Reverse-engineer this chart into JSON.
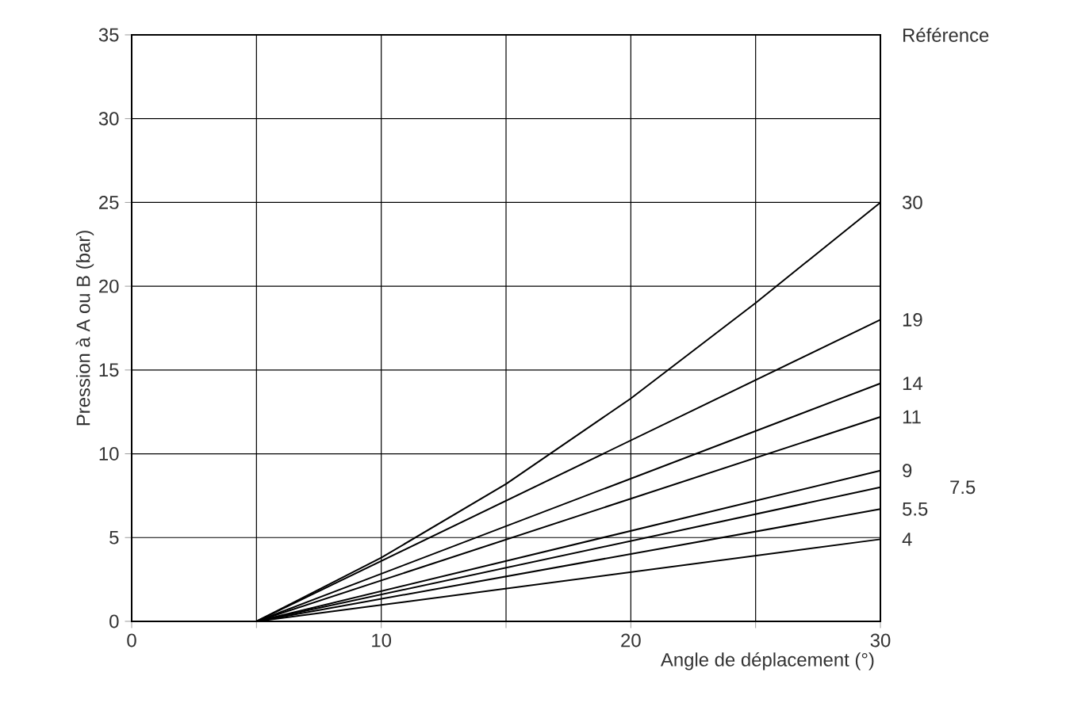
{
  "chart_data": {
    "type": "line",
    "xlabel": "Angle de déplacement (°)",
    "ylabel": "Pression à A ou B (bar)",
    "legend_title": "Référence",
    "xlim": [
      0,
      30
    ],
    "ylim": [
      0,
      35
    ],
    "xticks": [
      0,
      {
        "value": 5,
        "label": null
      },
      10,
      {
        "value": 15,
        "label": null
      },
      20,
      {
        "value": 25,
        "label": null
      },
      30
    ],
    "yticks": [
      0,
      5,
      10,
      15,
      20,
      25,
      30,
      35
    ],
    "grid": true,
    "marker": "none",
    "line_style": "solid",
    "series": [
      {
        "name": "30",
        "color": "#000000",
        "x": [
          5,
          10,
          15,
          20,
          25,
          30
        ],
        "values": [
          0,
          3.8,
          8.2,
          13.3,
          19,
          25
        ]
      },
      {
        "name": "19",
        "color": "#000000",
        "x": [
          5,
          30
        ],
        "values": [
          0,
          18
        ]
      },
      {
        "name": "14",
        "color": "#000000",
        "x": [
          5,
          30
        ],
        "values": [
          0,
          14.2
        ]
      },
      {
        "name": "11",
        "color": "#000000",
        "x": [
          5,
          30
        ],
        "values": [
          0,
          12.2
        ]
      },
      {
        "name": "9",
        "color": "#000000",
        "x": [
          5,
          30
        ],
        "values": [
          0,
          9
        ]
      },
      {
        "name": "7.5",
        "color": "#000000",
        "x": [
          5,
          30
        ],
        "values": [
          0,
          8
        ]
      },
      {
        "name": "5.5",
        "color": "#000000",
        "x": [
          5,
          30
        ],
        "values": [
          0,
          6.7
        ]
      },
      {
        "name": "4",
        "color": "#000000",
        "x": [
          5,
          30
        ],
        "values": [
          0,
          4.9
        ]
      }
    ]
  }
}
